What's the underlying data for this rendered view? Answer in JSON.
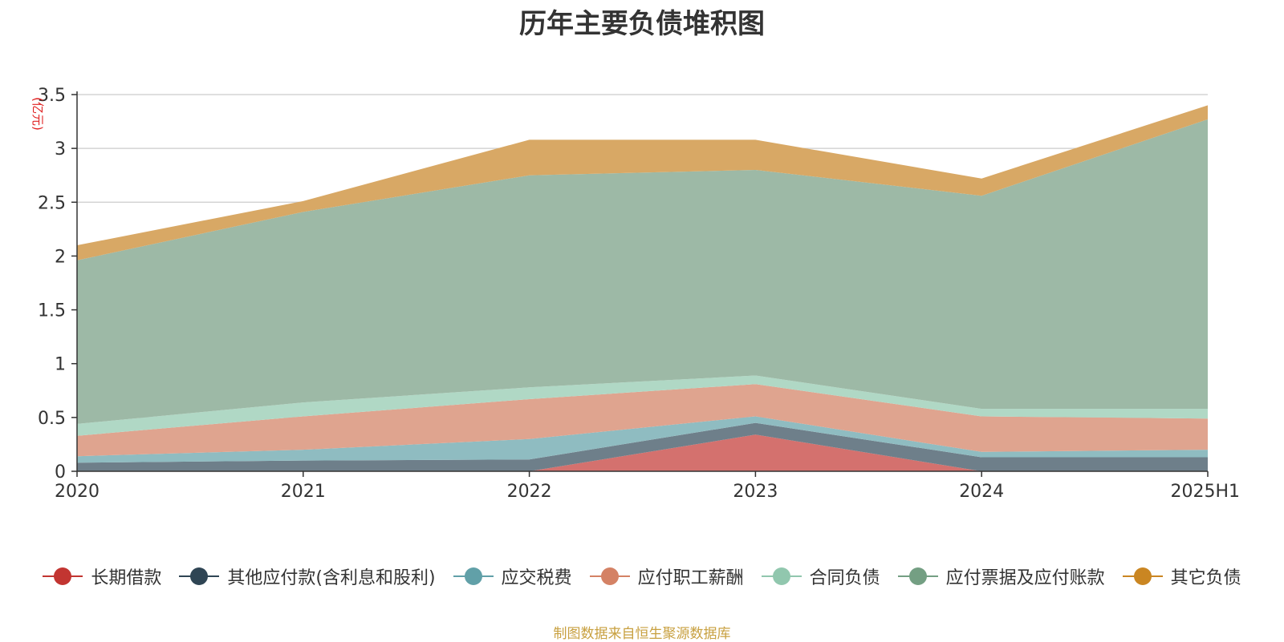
{
  "chart_data": {
    "type": "area",
    "stacked": true,
    "title": "历年主要负债堆积图",
    "unit_label": "(亿元)",
    "categories": [
      "2020",
      "2021",
      "2022",
      "2023",
      "2024",
      "2025H1"
    ],
    "ylim": [
      0,
      3.5
    ],
    "yticks": [
      "0",
      "0.5",
      "1",
      "1.5",
      "2",
      "2.5",
      "3",
      "3.5"
    ],
    "grid": true,
    "legend_position": "bottom",
    "series": [
      {
        "name": "长期借款",
        "color": "#c23531",
        "fill": "#d4716e",
        "values": [
          0,
          0,
          0,
          0.34,
          0,
          0
        ]
      },
      {
        "name": "其他应付款(含利息和股利)",
        "color": "#2f4554",
        "fill": "#6e7f8a",
        "values": [
          0.08,
          0.1,
          0.11,
          0.11,
          0.13,
          0.13
        ]
      },
      {
        "name": "应交税费",
        "color": "#61a0a8",
        "fill": "#8fbcc1",
        "values": [
          0.06,
          0.1,
          0.19,
          0.06,
          0.05,
          0.07
        ]
      },
      {
        "name": "应付职工薪酬",
        "color": "#d48265",
        "fill": "#dfa48f",
        "values": [
          0.19,
          0.31,
          0.37,
          0.3,
          0.33,
          0.29
        ]
      },
      {
        "name": "合同负债",
        "color": "#91c7ae",
        "fill": "#b0d8c5",
        "values": [
          0.11,
          0.13,
          0.11,
          0.08,
          0.07,
          0.09
        ]
      },
      {
        "name": "应付票据及应付账款",
        "color": "#749f83",
        "fill": "#9db9a6",
        "values": [
          1.52,
          1.77,
          1.97,
          1.91,
          1.98,
          2.69
        ]
      },
      {
        "name": "其它负债",
        "color": "#ca8622",
        "fill": "#d8a865",
        "values": [
          0.14,
          0.1,
          0.33,
          0.28,
          0.16,
          0.13
        ]
      }
    ]
  },
  "source_note": "制图数据来自恒生聚源数据库"
}
